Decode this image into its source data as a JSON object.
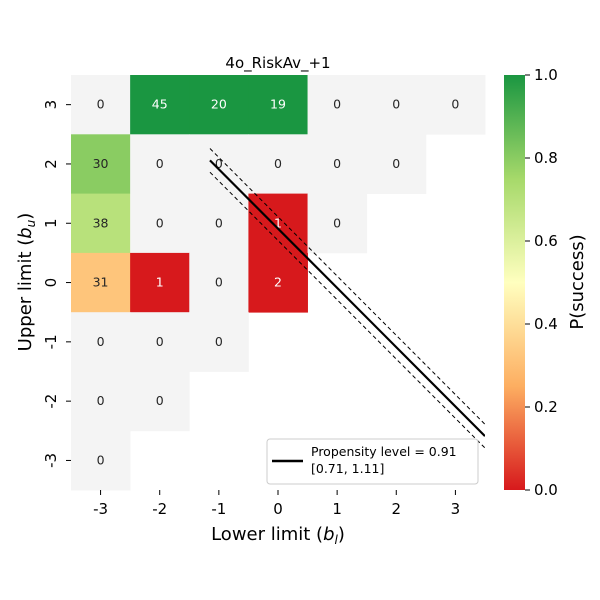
{
  "chart_data": {
    "type": "heatmap",
    "title": "4o_RiskAv_+1",
    "xlabel": "Lower limit (",
    "xlabel_sym": "b",
    "xlabel_sub": "l",
    "xlabel_close": ")",
    "ylabel": "Upper limit (",
    "ylabel_sym": "b",
    "ylabel_sub": "u",
    "ylabel_close": ")",
    "x_categories": [
      "-3",
      "-2",
      "-1",
      "0",
      "1",
      "2",
      "3"
    ],
    "y_categories": [
      "3",
      "2",
      "1",
      "0",
      "-1",
      "-2",
      "-3"
    ],
    "x_values": [
      -3,
      -2,
      -1,
      0,
      1,
      2,
      3
    ],
    "y_values": [
      3,
      2,
      1,
      0,
      -1,
      -2,
      -3
    ],
    "cells": [
      {
        "x": -3,
        "y": 3,
        "count": "0",
        "p": null
      },
      {
        "x": -2,
        "y": 3,
        "count": "45",
        "p": 1.0
      },
      {
        "x": -1,
        "y": 3,
        "count": "20",
        "p": 1.0
      },
      {
        "x": 0,
        "y": 3,
        "count": "19",
        "p": 1.0
      },
      {
        "x": 1,
        "y": 3,
        "count": "0",
        "p": null
      },
      {
        "x": 2,
        "y": 3,
        "count": "0",
        "p": null
      },
      {
        "x": 3,
        "y": 3,
        "count": "0",
        "p": null
      },
      {
        "x": -3,
        "y": 2,
        "count": "30",
        "p": 0.8
      },
      {
        "x": -2,
        "y": 2,
        "count": "0",
        "p": null
      },
      {
        "x": -1,
        "y": 2,
        "count": "0",
        "p": null
      },
      {
        "x": 0,
        "y": 2,
        "count": "0",
        "p": null
      },
      {
        "x": 1,
        "y": 2,
        "count": "0",
        "p": null
      },
      {
        "x": 2,
        "y": 2,
        "count": "0",
        "p": null
      },
      {
        "x": -3,
        "y": 1,
        "count": "38",
        "p": 0.7
      },
      {
        "x": -2,
        "y": 1,
        "count": "0",
        "p": null
      },
      {
        "x": -1,
        "y": 1,
        "count": "0",
        "p": null
      },
      {
        "x": 0,
        "y": 1,
        "count": "1",
        "p": 0.0
      },
      {
        "x": 1,
        "y": 1,
        "count": "0",
        "p": null
      },
      {
        "x": -3,
        "y": 0,
        "count": "31",
        "p": 0.32
      },
      {
        "x": -2,
        "y": 0,
        "count": "1",
        "p": 0.0
      },
      {
        "x": -1,
        "y": 0,
        "count": "0",
        "p": null
      },
      {
        "x": 0,
        "y": 0,
        "count": "2",
        "p": 0.0
      },
      {
        "x": -3,
        "y": -1,
        "count": "0",
        "p": null
      },
      {
        "x": -2,
        "y": -1,
        "count": "0",
        "p": null
      },
      {
        "x": -1,
        "y": -1,
        "count": "0",
        "p": null
      },
      {
        "x": -3,
        "y": -2,
        "count": "0",
        "p": null
      },
      {
        "x": -2,
        "y": -2,
        "count": "0",
        "p": null
      },
      {
        "x": -3,
        "y": -3,
        "count": "0",
        "p": null
      }
    ],
    "propensity_line": {
      "slope": -1,
      "intercept": 0.91,
      "lower": 0.71,
      "upper": 1.11,
      "x_start": -1.15,
      "x_end": 3.5
    },
    "legend": {
      "line1": "Propensity level = 0.91",
      "line2": "[0.71, 1.11]",
      "position": "lower-right"
    },
    "colorbar": {
      "label": "P(success)",
      "range": [
        0.0,
        1.0
      ],
      "ticks": [
        "0.0",
        "0.2",
        "0.4",
        "0.6",
        "0.8",
        "1.0"
      ],
      "tick_values": [
        0.0,
        0.2,
        0.4,
        0.6,
        0.8,
        1.0
      ],
      "colors": [
        "#d7191c",
        "#fdae61",
        "#ffffbf",
        "#a6d96a",
        "#1a9641"
      ],
      "empty_color": "#f4f4f4"
    }
  }
}
